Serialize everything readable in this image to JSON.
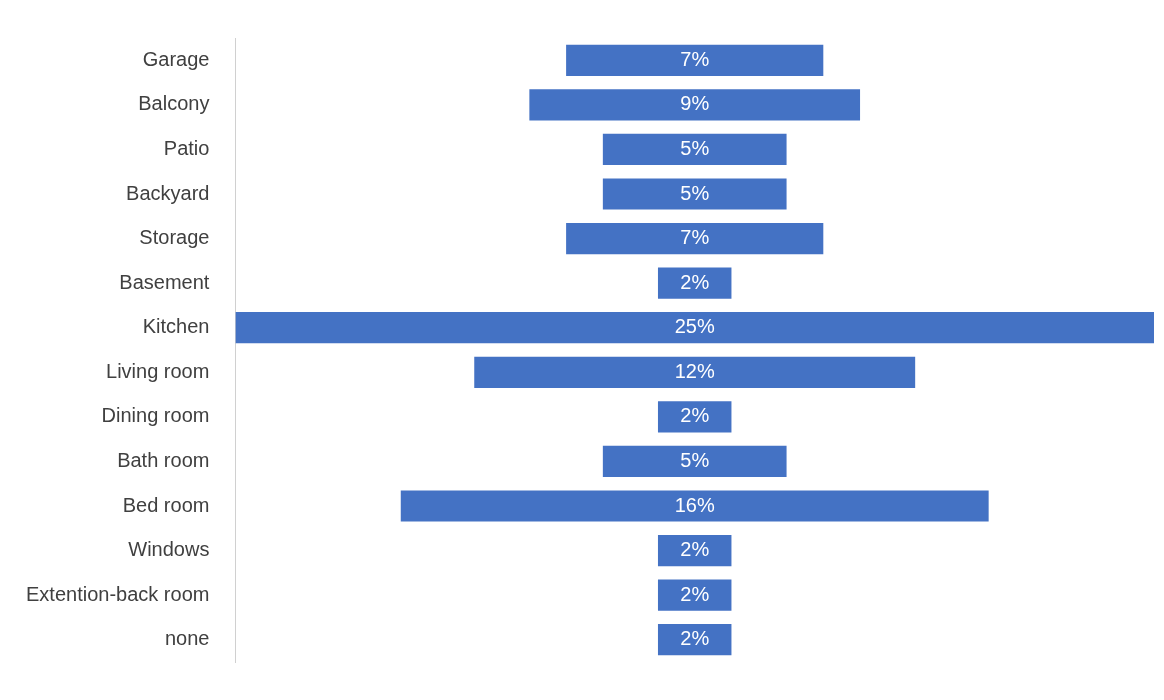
{
  "chart_data": {
    "type": "other",
    "categories": [
      "Garage",
      "Balcony",
      "Patio",
      "Backyard",
      "Storage",
      "Basement",
      "Kitchen",
      "Living room",
      "Dining room",
      "Bath room",
      "Bed room",
      "Windows",
      "Extention-back room",
      "none"
    ],
    "values": [
      7,
      9,
      5,
      5,
      7,
      2,
      25,
      12,
      2,
      5,
      16,
      2,
      2,
      2
    ],
    "value_labels": [
      "7%",
      "9%",
      "5%",
      "5%",
      "7%",
      "2%",
      "25%",
      "12%",
      "2%",
      "5%",
      "16%",
      "2%",
      "2%",
      "2%"
    ],
    "color": "#4472c4"
  }
}
